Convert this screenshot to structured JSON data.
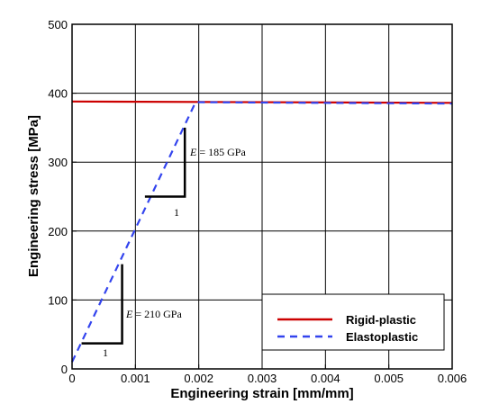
{
  "chart_data": {
    "type": "line",
    "xlabel": "Engineering strain [mm/mm]",
    "ylabel": "Engineering stress [MPa]",
    "xlim": [
      0,
      0.006
    ],
    "ylim": [
      0,
      500
    ],
    "x_ticks": [
      "0",
      "0.001",
      "0.002",
      "0.003",
      "0.004",
      "0.005",
      "0.006"
    ],
    "y_ticks": [
      "0",
      "100",
      "200",
      "300",
      "400",
      "500"
    ],
    "grid": true,
    "legend_position": "bottom-right",
    "series": [
      {
        "name": "Rigid-plastic",
        "color": "#cc0000",
        "style": "solid",
        "x": [
          0,
          0.006
        ],
        "y": [
          388,
          386
        ]
      },
      {
        "name": "Elastoplastic",
        "color": "#3344ee",
        "style": "dashed",
        "x": [
          0,
          0.00195,
          0.006
        ],
        "y": [
          10,
          387,
          385
        ]
      }
    ],
    "annotations": [
      {
        "math_symbol": "E",
        "text": " = 185 GPa",
        "slope_run_label": "1"
      },
      {
        "math_symbol": "E",
        "text": " = 210 GPa",
        "slope_run_label": "1"
      }
    ],
    "slope_triangles": [
      {
        "x0": 0.00115,
        "x1": 0.00178,
        "y_base": 250,
        "y_top": 350
      },
      {
        "x0": 0.00015,
        "x1": 0.00079,
        "y_base": 37,
        "y_top": 152
      }
    ]
  }
}
